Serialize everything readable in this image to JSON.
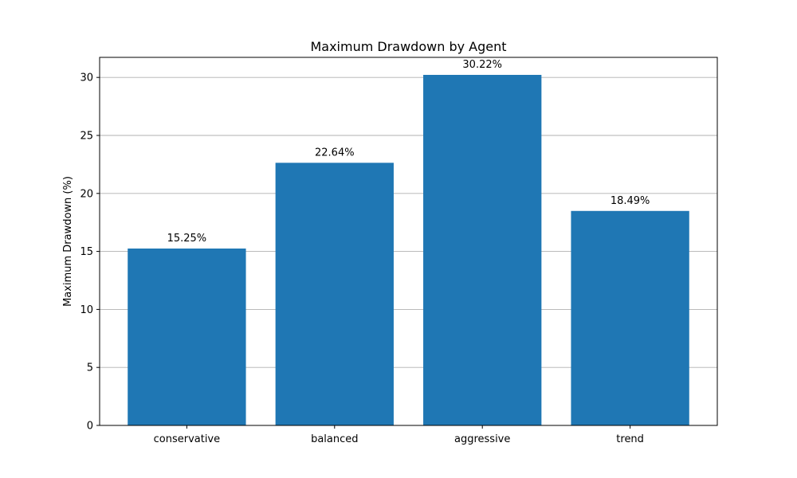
{
  "chart_data": {
    "type": "bar",
    "title": "Maximum Drawdown by Agent",
    "xlabel": "",
    "ylabel": "Maximum Drawdown (%)",
    "categories": [
      "conservative",
      "balanced",
      "aggressive",
      "trend"
    ],
    "values": [
      15.25,
      22.64,
      30.22,
      18.49
    ],
    "data_labels": [
      "15.25%",
      "22.64%",
      "30.22%",
      "18.49%"
    ],
    "ylim": [
      0,
      31.73
    ],
    "yticks": [
      0,
      5,
      10,
      15,
      20,
      25,
      30
    ],
    "grid": "y",
    "bar_color": "#1f77b4"
  }
}
